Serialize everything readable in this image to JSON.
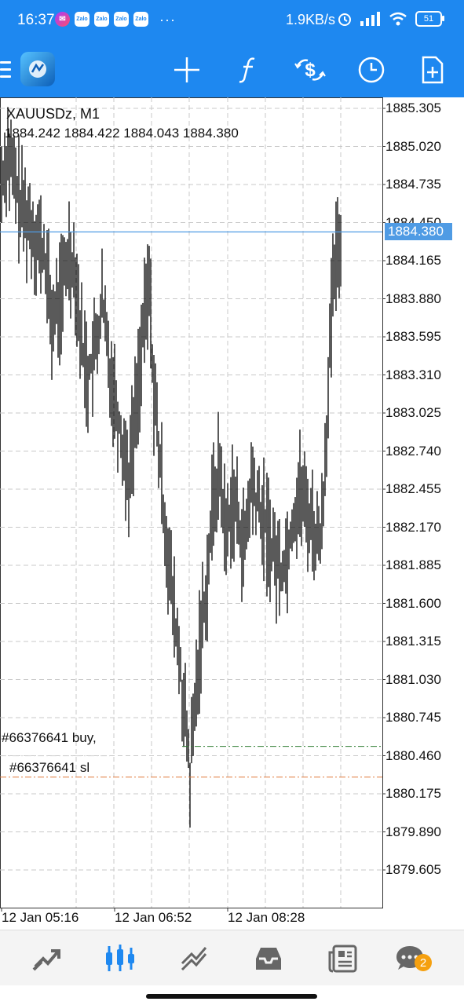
{
  "status_bar": {
    "time": "16:37",
    "apps": [
      "Zalo",
      "Zalo",
      "Zalo",
      "Zalo"
    ],
    "more": "···",
    "network_speed": "1.9KB/s",
    "battery": "51"
  },
  "toolbar": {
    "icons": [
      "menu-icon",
      "app-logo",
      "crosshair-icon",
      "function-icon",
      "trade-icon",
      "clock-icon",
      "add-document-icon"
    ]
  },
  "chart": {
    "symbol": "XAUUSDz, M1",
    "ohlc": "1884.242 1884.422 1884.043 1884.380",
    "bid_price": "1884.380",
    "price_scale": [
      "1885.305",
      "1885.020",
      "1884.735",
      "1884.450",
      "1884.165",
      "1883.880",
      "1883.595",
      "1883.310",
      "1883.025",
      "1882.740",
      "1882.455",
      "1882.170",
      "1881.885",
      "1881.600",
      "1881.315",
      "1881.030",
      "1880.745",
      "1880.460",
      "1880.175",
      "1879.890",
      "1879.605"
    ],
    "time_labels": [
      "12 Jan 05:16",
      "12 Jan 06:52",
      "12 Jan 08:28"
    ],
    "orders": [
      {
        "label": "#66376641 buy,",
        "price": 1880.53,
        "color": "#2e7d32"
      },
      {
        "label": "#66376641 sl",
        "price": 1880.3,
        "color": "#e07a3c"
      }
    ],
    "colors": {
      "grid": "#c8c8c8",
      "bid_line": "#4f9be4",
      "bars": "#000000"
    }
  },
  "bottom_nav": {
    "items": [
      "quotes",
      "chart",
      "trade",
      "history",
      "news",
      "messages"
    ],
    "messages_badge": "2",
    "active": "chart"
  }
}
